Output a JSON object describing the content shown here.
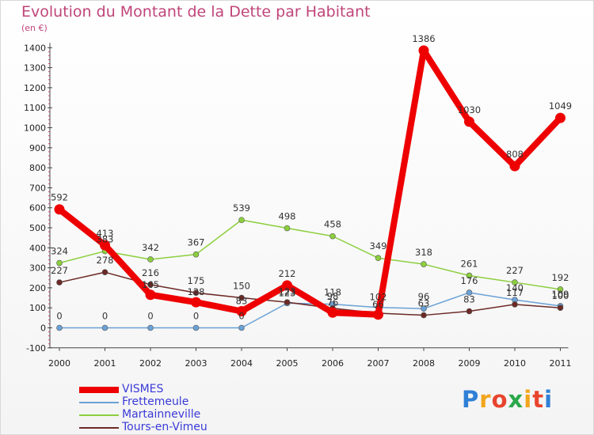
{
  "chart_data": {
    "type": "line",
    "title": "Evolution du Montant de la Dette par Habitant",
    "subtitle": "(en €)",
    "categories": [
      "2000",
      "2001",
      "2002",
      "2003",
      "2004",
      "2005",
      "2006",
      "2007",
      "2008",
      "2009",
      "2010",
      "2011"
    ],
    "y_ticks": [
      -100,
      0,
      100,
      200,
      300,
      400,
      500,
      600,
      700,
      800,
      900,
      1000,
      1100,
      1200,
      1300,
      1400
    ],
    "ylim": [
      -100,
      1400
    ],
    "grid": false,
    "legend_position": "bottom-left",
    "series": [
      {
        "name": "VISMES",
        "color": "#ee0000",
        "values": [
          592,
          413,
          165,
          128,
          83,
          212,
          76,
          66,
          1386,
          1030,
          808,
          1049
        ],
        "labels": [
          "592",
          "413",
          "",
          "",
          "",
          "212",
          "",
          "",
          "1386",
          "1030",
          "808",
          "1049"
        ]
      },
      {
        "name": "Frettemeule",
        "color": "#6aa1d6",
        "values": [
          0,
          0,
          0,
          0,
          0,
          123,
          118,
          102,
          96,
          176,
          140,
          109
        ],
        "labels": [
          "0",
          "0",
          "0",
          "0",
          "0",
          "123",
          "118",
          "",
          "96",
          "176",
          "140",
          "109"
        ]
      },
      {
        "name": "Martainneville",
        "color": "#8ccf3e",
        "values": [
          324,
          383,
          342,
          367,
          539,
          498,
          458,
          349,
          318,
          261,
          227,
          192
        ],
        "labels": [
          "324",
          "383",
          "342",
          "367",
          "539",
          "498",
          "458",
          "349",
          "318",
          "261",
          "227",
          "192"
        ]
      },
      {
        "name": "Tours-en-Vimeu",
        "color": "#6b2a26",
        "values": [
          227,
          278,
          216,
          175,
          150,
          128,
          98,
          73,
          63,
          83,
          117,
          100
        ],
        "labels": [
          "227",
          "278",
          "216",
          "175",
          "150",
          "",
          "98",
          "",
          "63",
          "83",
          "117",
          "100"
        ]
      }
    ],
    "overlap_labels": [
      "165",
      "128",
      "83",
      "76",
      "66",
      "102",
      "123"
    ]
  },
  "branding": {
    "logo_text": "Proxiti"
  }
}
